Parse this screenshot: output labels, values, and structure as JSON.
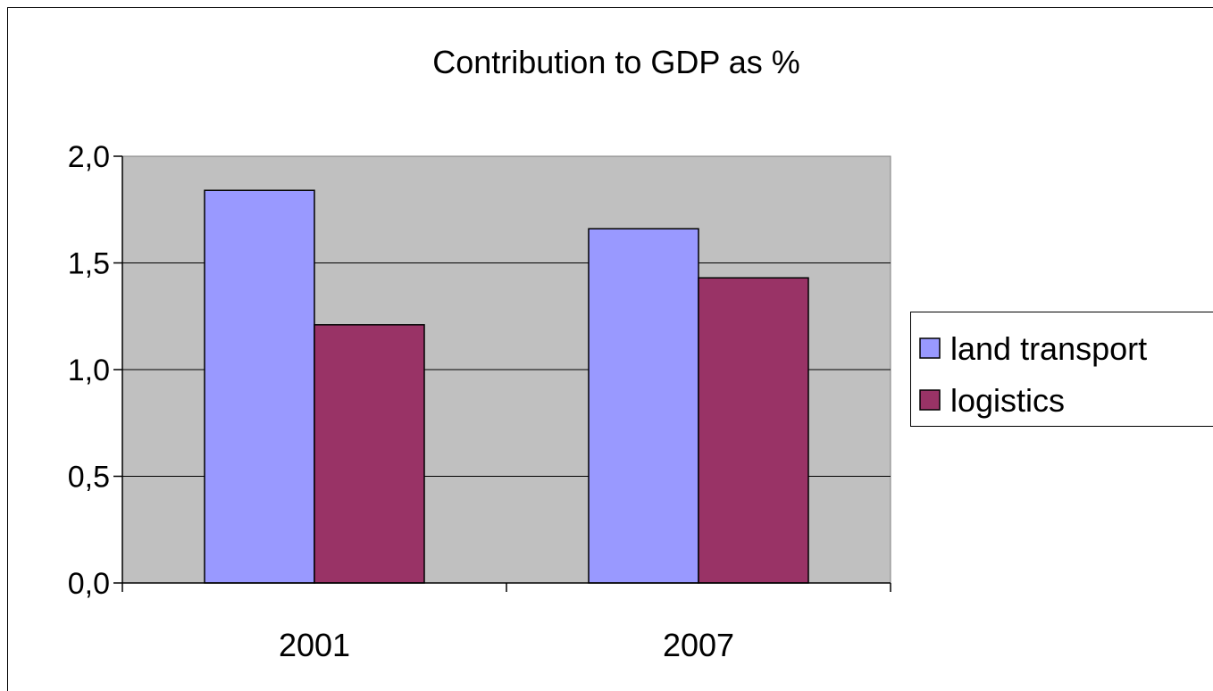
{
  "chart_data": {
    "type": "bar",
    "title": "Contribution to GDP as %",
    "xlabel": "",
    "ylabel": "",
    "categories": [
      "2001",
      "2007"
    ],
    "series": [
      {
        "name": "land transport",
        "color": "#9999ff",
        "values": [
          1.84,
          1.66
        ]
      },
      {
        "name": "logistics",
        "color": "#993366",
        "values": [
          1.21,
          1.43
        ]
      }
    ],
    "ylim": [
      0,
      2
    ],
    "yticks": [
      0,
      0.5,
      1,
      1.5,
      2
    ],
    "ytick_labels": [
      "0,0",
      "0,5",
      "1,0",
      "1,5",
      "2,0"
    ],
    "grid": true,
    "plot_background": "#c0c0c0",
    "legend_position": "right"
  }
}
